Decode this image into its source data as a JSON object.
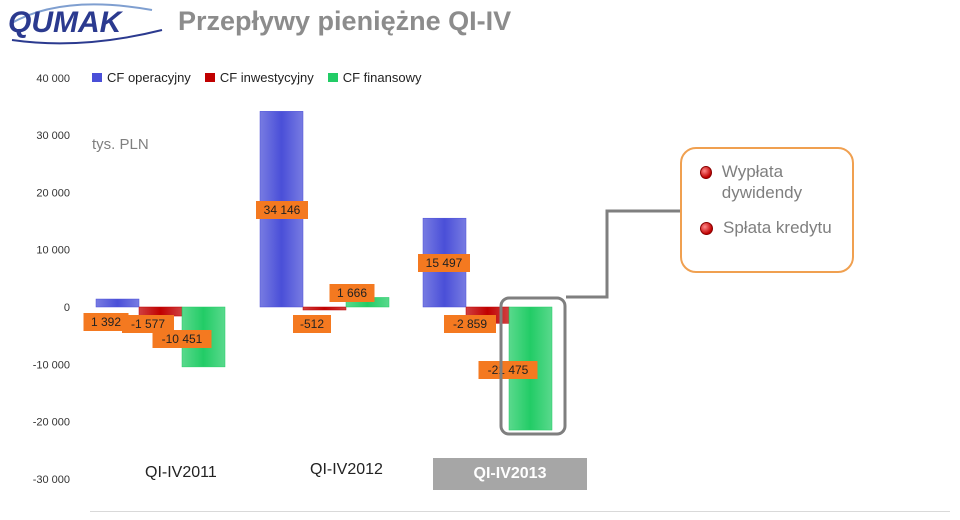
{
  "header": {
    "logo_text": "QUMAK",
    "title": "Przepływy pieniężne QI-IV",
    "unit": "tys. PLN"
  },
  "callout": {
    "items": [
      "Wypłata dywidendy",
      "Spłata kredytu"
    ],
    "accent_color": "#f0a050",
    "bullet_color": "#c00000"
  },
  "chart_data": {
    "type": "bar",
    "categories": [
      "QI-IV2011",
      "QI-IV2012",
      "QI-IV2013"
    ],
    "highlighted_category": "QI-IV2013",
    "series": [
      {
        "name": "CF operacyjny",
        "values": [
          1392,
          34146,
          15497
        ],
        "labels": [
          "1 392",
          "34 146",
          "15 497"
        ],
        "color": "#4a4fd8"
      },
      {
        "name": "CF inwestycyjny",
        "values": [
          -1577,
          -512,
          -2859
        ],
        "labels": [
          "-1 577",
          "-512",
          "-2 859"
        ],
        "color": "#c00000"
      },
      {
        "name": "CF finansowy",
        "values": [
          -10451,
          1666,
          -21475
        ],
        "labels": [
          "-10 451",
          "1 666",
          "-21 475"
        ],
        "color": "#22cc66"
      }
    ],
    "yticks": [
      40000,
      30000,
      20000,
      10000,
      0,
      -10000,
      -20000,
      -30000
    ],
    "ytick_labels": [
      "40 000",
      "30 000",
      "20 000",
      "10 000",
      "0",
      "-10 000",
      "-20 000",
      "-30 000"
    ],
    "ylim": [
      -30000,
      40000
    ],
    "legend_position": "top",
    "label_color": "#f47920"
  }
}
